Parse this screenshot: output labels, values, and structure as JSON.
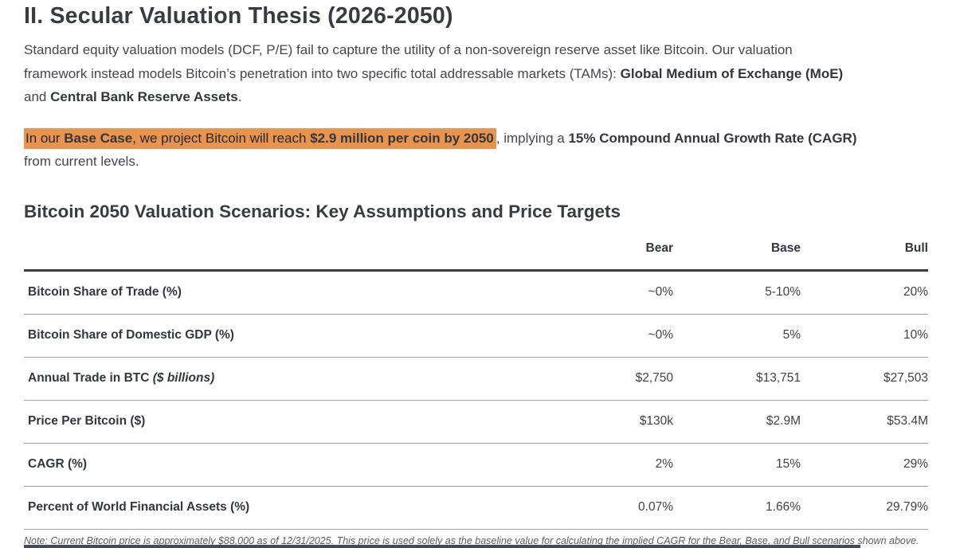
{
  "colors": {
    "highlight": "#E8944D",
    "heading_text": "#383c42",
    "body_text": "#43474d",
    "note_text": "#5b5e63",
    "table_header_border": "#3a3e44",
    "table_row_border": "#9c9da0",
    "bottom_bar": "#454b55"
  },
  "section": {
    "title": "II. Secular Valuation Thesis (2026-2050)",
    "intro": {
      "line1": "Standard equity valuation models (DCF, P/E) fail to capture the utility of a non-sovereign reserve asset like Bitcoin. Our valuation",
      "line2_pre": "framework instead models Bitcoin’s penetration into two specific total addressable markets (TAMs): ",
      "line2_bold": "Global Medium of Exchange (MoE)",
      "line3_pre": "and ",
      "line3_bold": "Central Bank Reserve Assets",
      "line3_end": "."
    },
    "claim": {
      "hl_pre": "In our ",
      "hl_bold1": "Base Case",
      "hl_mid": ", we project Bitcoin will reach ",
      "hl_bold2": "$2.9 million per coin by 2050",
      "after_pre": ", implying a ",
      "after_bold": "15% Compound Annual Growth Rate (CAGR)",
      "after_end": "from current levels."
    }
  },
  "table_section": {
    "title": "Bitcoin 2050 Valuation Scenarios: Key Assumptions and Price Targets",
    "columns": {
      "bear": "Bear",
      "base": "Base",
      "bull": "Bull"
    },
    "rows": [
      {
        "label": "Bitcoin Share of Trade (%)",
        "label_suffix": "",
        "bear": "~0%",
        "base": "5-10%",
        "bull": "20%"
      },
      {
        "label": "Bitcoin Share of Domestic GDP (%)",
        "label_suffix": "",
        "bear": "~0%",
        "base": "5%",
        "bull": "10%"
      },
      {
        "label": "Annual Trade in BTC",
        "label_suffix": " ($ billions)",
        "bear": "$2,750",
        "base": "$13,751",
        "bull": "$27,503"
      },
      {
        "label": "Price Per Bitcoin ($)",
        "label_suffix": "",
        "bear": "$130k",
        "base": "$2.9M",
        "bull": "$53.4M"
      },
      {
        "label": "CAGR (%)",
        "label_suffix": "",
        "bear": "2%",
        "base": "15%",
        "bull": "29%"
      },
      {
        "label": "Percent of World Financial Assets (%)",
        "label_suffix": "",
        "bear": "0.07%",
        "base": "1.66%",
        "bull": "29.79%"
      }
    ],
    "note": "Note: Current Bitcoin price is approximately $88,000 as of 12/31/2025. This price is used solely as the baseline value for calculating the implied CAGR for the Bear, Base, and Bull scenarios shown above."
  }
}
